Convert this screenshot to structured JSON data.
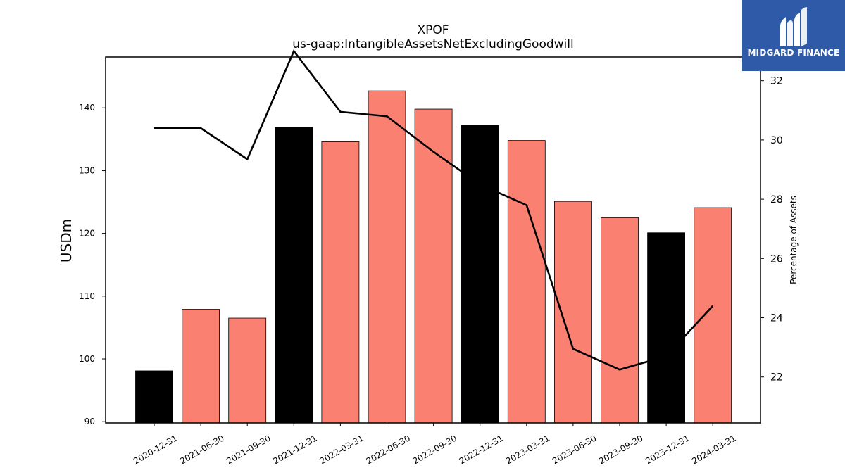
{
  "chart_data": {
    "type": "bar",
    "title": "XPOF",
    "subtitle": "us-gaap:IntangibleAssetsNetExcludingGoodwill",
    "categories": [
      "2020-12-31",
      "2021-06-30",
      "2021-09-30",
      "2021-12-31",
      "2022-03-31",
      "2022-06-30",
      "2022-09-30",
      "2022-12-31",
      "2023-03-31",
      "2023-06-30",
      "2023-09-30",
      "2023-12-31",
      "2024-03-31"
    ],
    "series": [
      {
        "type": "bar",
        "axis": "left",
        "values": [
          98.1,
          107.9,
          106.5,
          136.9,
          134.6,
          142.7,
          139.8,
          137.2,
          134.8,
          125.1,
          122.5,
          120.1,
          124.1
        ],
        "colors": [
          "#000000",
          "#fa8072",
          "#fa8072",
          "#000000",
          "#fa8072",
          "#fa8072",
          "#fa8072",
          "#000000",
          "#fa8072",
          "#fa8072",
          "#fa8072",
          "#000000",
          "#fa8072"
        ]
      },
      {
        "type": "line",
        "axis": "right",
        "color": "#000000",
        "values": [
          30.4,
          30.4,
          29.35,
          33.0,
          30.95,
          30.8,
          29.6,
          28.5,
          27.8,
          22.95,
          22.25,
          22.7,
          24.4
        ]
      }
    ],
    "ylabel_left": "USDm",
    "ylabel_right": "Percentage of Assets",
    "ylim_left": [
      89.8,
      148.1
    ],
    "yticks_left": [
      90,
      100,
      110,
      120,
      130,
      140
    ],
    "ylim_right": [
      20.45,
      32.8
    ],
    "yticks_right": [
      22,
      24,
      26,
      28,
      30,
      32
    ],
    "grid": false,
    "legend": "none"
  },
  "logo": {
    "text": "MIDGARD FINANCE",
    "color": "#2f5aa8"
  }
}
